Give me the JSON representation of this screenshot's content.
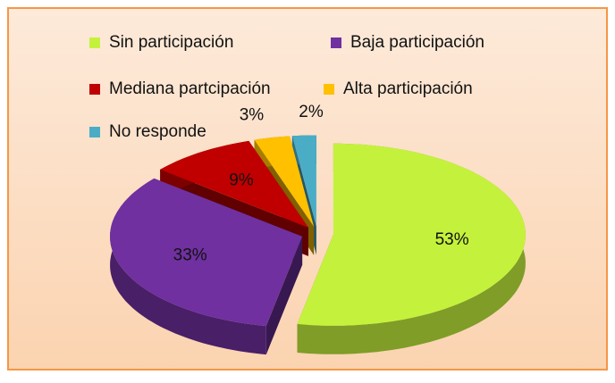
{
  "chart_data": {
    "type": "pie",
    "categories": [
      "Sin participación",
      "Baja participación",
      "Mediana partcipación",
      "Alta participación",
      "No responde"
    ],
    "values": [
      53,
      33,
      9,
      3,
      2
    ],
    "value_labels": [
      "53%",
      "33%",
      "9%",
      "3%",
      "2%"
    ],
    "colors": [
      "#c4f23c",
      "#7030a0",
      "#c00000",
      "#ffc000",
      "#4bacc6"
    ],
    "legend": "top"
  }
}
